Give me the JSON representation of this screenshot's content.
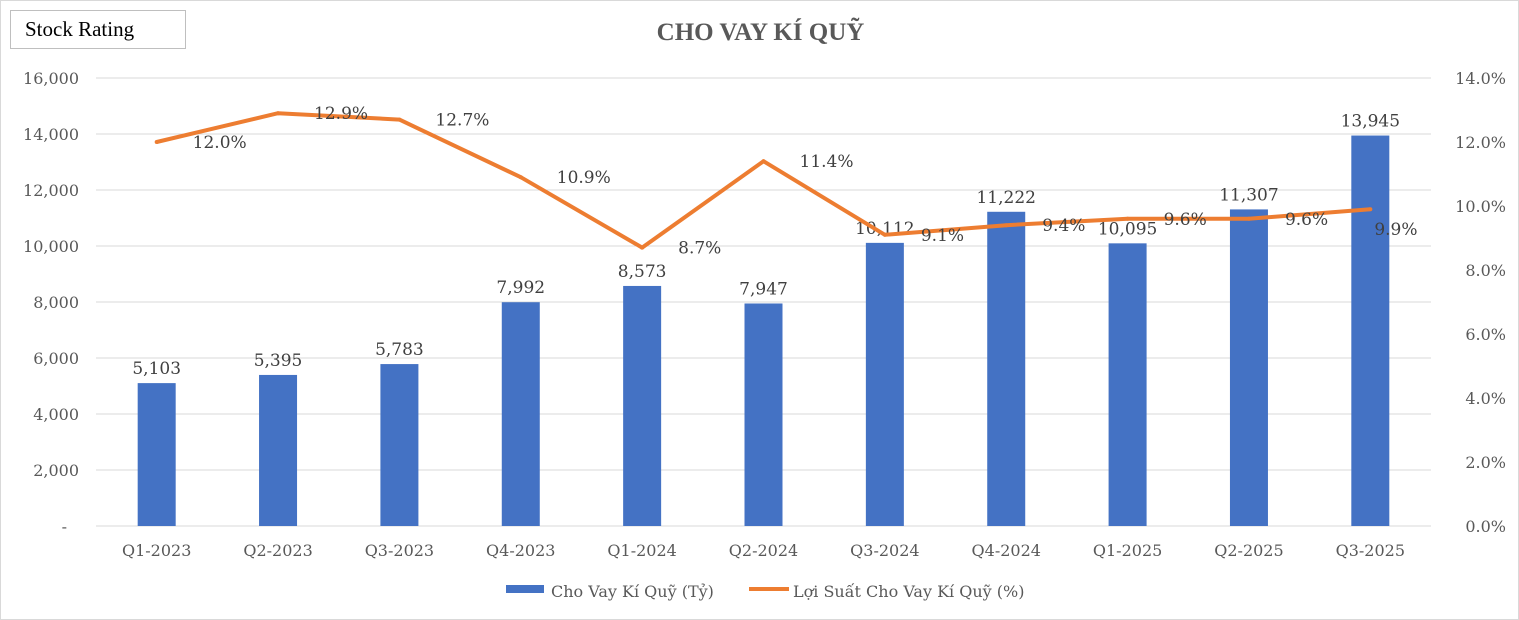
{
  "badge": "Stock Rating",
  "chart_data": {
    "type": "bar+line",
    "title": "CHO VAY KÍ QUỸ",
    "categories": [
      "Q1-2023",
      "Q2-2023",
      "Q3-2023",
      "Q4-2023",
      "Q1-2024",
      "Q2-2024",
      "Q3-2024",
      "Q4-2024",
      "Q1-2025",
      "Q2-2025",
      "Q3-2025"
    ],
    "series": [
      {
        "name": "Cho Vay Kí Quỹ (Tỷ)",
        "type": "bar",
        "axis": "left",
        "color": "#4472C4",
        "values": [
          5103,
          5395,
          5783,
          7992,
          8573,
          7947,
          10112,
          11222,
          10095,
          11307,
          13945
        ],
        "labels": [
          "5,103",
          "5,395",
          "5,783",
          "7,992",
          "8,573",
          "7,947",
          "10,112",
          "11,222",
          "10,095",
          "11,307",
          "13,945"
        ]
      },
      {
        "name": "Lợi Suất Cho Vay Kí Quỹ (%)",
        "type": "line",
        "axis": "right",
        "color": "#ED7D31",
        "values": [
          12.0,
          12.9,
          12.7,
          10.9,
          8.7,
          11.4,
          9.1,
          9.4,
          9.6,
          9.6,
          9.9
        ],
        "labels": [
          "12.0%",
          "12.9%",
          "12.7%",
          "10.9%",
          "8.7%",
          "11.4%",
          "9.1%",
          "9.4%",
          "9.6%",
          "9.6%",
          "9.9%"
        ]
      }
    ],
    "left_axis": {
      "ylim": [
        0,
        16000
      ],
      "ticks": [
        "-",
        "2,000",
        "4,000",
        "6,000",
        "8,000",
        "10,000",
        "12,000",
        "14,000",
        "16,000"
      ]
    },
    "right_axis": {
      "ylim": [
        0,
        14
      ],
      "ticks": [
        "0.0%",
        "2.0%",
        "4.0%",
        "6.0%",
        "8.0%",
        "10.0%",
        "12.0%",
        "14.0%"
      ]
    },
    "grid": true,
    "legend": "bottom"
  }
}
